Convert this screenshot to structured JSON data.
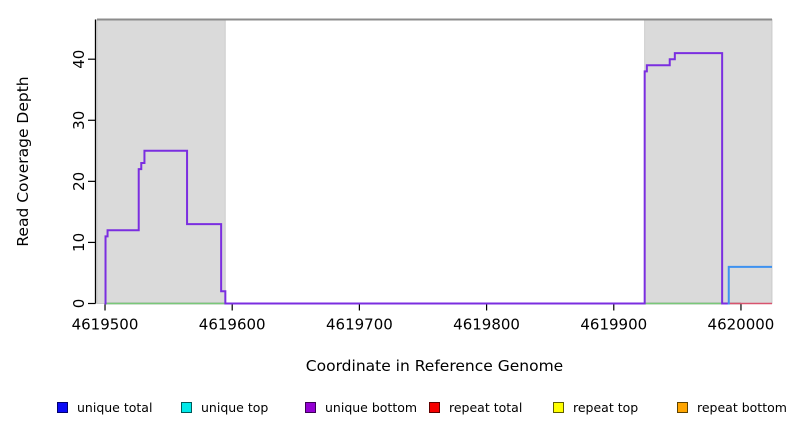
{
  "chart_data": {
    "type": "line",
    "subtype": "step",
    "title": "",
    "xlabel": "Coordinate in Reference Genome",
    "ylabel": "Read Coverage Depth",
    "xlim": [
      4619493.7,
      4620024.4
    ],
    "ylim": [
      0,
      46.5
    ],
    "grid": false,
    "legend_position": "bottom",
    "xticks": [
      {
        "v": 4619500,
        "label": "4619500"
      },
      {
        "v": 4619600,
        "label": "4619600"
      },
      {
        "v": 4619700,
        "label": "4619700"
      },
      {
        "v": 4619800,
        "label": "4619800"
      },
      {
        "v": 4619900,
        "label": "4619900"
      },
      {
        "v": 4620000,
        "label": "4620000"
      }
    ],
    "yticks": [
      {
        "v": 0,
        "label": "0"
      },
      {
        "v": 10,
        "label": "10"
      },
      {
        "v": 20,
        "label": "20"
      },
      {
        "v": 30,
        "label": "30"
      },
      {
        "v": 40,
        "label": "40"
      }
    ],
    "colors": {
      "shade": "#DADADA",
      "shade_border": "#C4C4C4",
      "frame": "#8C8C8C",
      "axis": "#000000"
    },
    "shaded_regions": [
      {
        "x0": 4619493.7,
        "x1": 4619594.5
      },
      {
        "x0": 4619924.3,
        "x1": 4620024.4
      }
    ],
    "series": [
      {
        "name": "baseline green left",
        "color": "#79C879",
        "width": 1.6,
        "steps": [
          [
            4619500,
            0
          ],
          [
            4619601,
            0
          ]
        ]
      },
      {
        "name": "baseline green right",
        "color": "#79C879",
        "width": 1.6,
        "steps": [
          [
            4619924.3,
            0
          ],
          [
            4619990,
            0
          ]
        ]
      },
      {
        "name": "repeat total",
        "color": "#D8536E",
        "width": 1.6,
        "steps": [
          [
            4619990,
            0
          ],
          [
            4620024.4,
            0
          ]
        ]
      },
      {
        "name": "unique bottom",
        "color": "#7B2EE0",
        "width": 2,
        "steps": [
          [
            4619499.6,
            0
          ],
          [
            4619500.4,
            11
          ],
          [
            4619502,
            12
          ],
          [
            4619526.5,
            22
          ],
          [
            4619528.5,
            23
          ],
          [
            4619531,
            25
          ],
          [
            4619564.5,
            13
          ],
          [
            4619591.3,
            2
          ],
          [
            4619594.6,
            0
          ],
          [
            4619924.3,
            38
          ],
          [
            4619926,
            39
          ],
          [
            4619944,
            40
          ],
          [
            4619948,
            41
          ],
          [
            4619985.2,
            0
          ],
          [
            4619991,
            0
          ]
        ]
      },
      {
        "name": "unique total",
        "color": "#3D91F0",
        "width": 2,
        "steps": [
          [
            4619989.6,
            0
          ],
          [
            4619990.4,
            6
          ],
          [
            4620024.4,
            6
          ]
        ]
      }
    ],
    "legend": [
      {
        "label": "unique total",
        "fill": "#0A0AF5",
        "border": "#00006E"
      },
      {
        "label": "unique top",
        "fill": "#00E8E8",
        "border": "#005959"
      },
      {
        "label": "unique bottom",
        "fill": "#9400D3",
        "border": "#3C0056"
      },
      {
        "label": "repeat total",
        "fill": "#F50000",
        "border": "#5E0000"
      },
      {
        "label": "repeat top",
        "fill": "#FFFF00",
        "border": "#5E5E00"
      },
      {
        "label": "repeat bottom",
        "fill": "#FFA500",
        "border": "#5E4200"
      }
    ]
  }
}
